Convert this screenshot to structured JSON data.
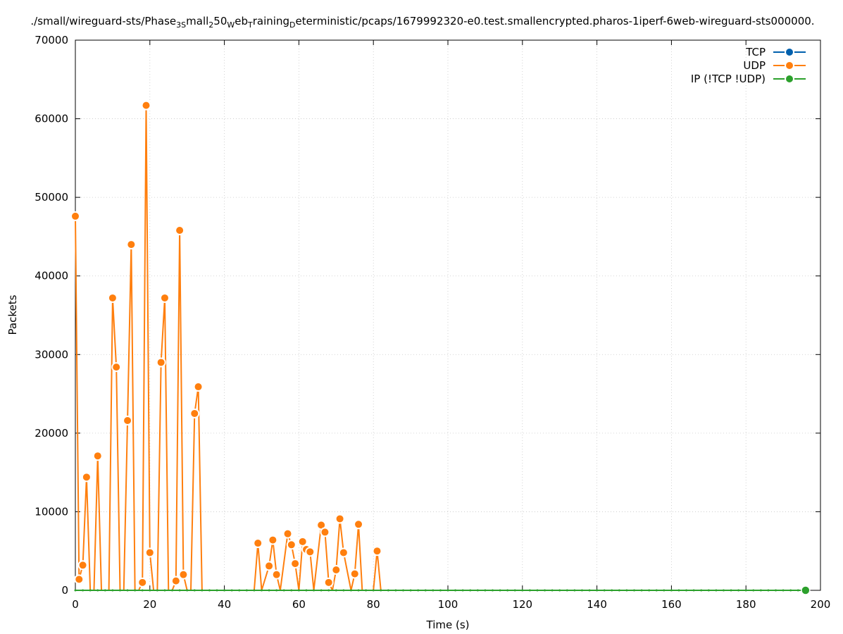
{
  "chart_data": {
    "type": "line",
    "title_parts": [
      {
        "t": "./small/wireguard-sts/Phase",
        "sub": false
      },
      {
        "t": "3S",
        "sub": true
      },
      {
        "t": "mall",
        "sub": false
      },
      {
        "t": "2",
        "sub": true
      },
      {
        "t": "50",
        "sub": false
      },
      {
        "t": "W",
        "sub": true
      },
      {
        "t": "eb",
        "sub": false
      },
      {
        "t": "T",
        "sub": true
      },
      {
        "t": "raining",
        "sub": false
      },
      {
        "t": "D",
        "sub": true
      },
      {
        "t": "eterministic/pcaps/1679992320-e0.test.smallencrypted.pharos-1iperf-6web-wireguard-sts000000.",
        "sub": false
      }
    ],
    "xlabel": "Time (s)",
    "ylabel": "Packets",
    "xlim": [
      0,
      200
    ],
    "ylim": [
      0,
      70000
    ],
    "x_ticks": [
      0,
      20,
      40,
      60,
      80,
      100,
      120,
      140,
      160,
      180,
      200
    ],
    "y_ticks": [
      0,
      10000,
      20000,
      30000,
      40000,
      50000,
      60000,
      70000
    ],
    "grid": true,
    "legend_position": "top-right",
    "series": [
      {
        "name": "TCP",
        "color": "#0060ad",
        "x": [],
        "y": []
      },
      {
        "name": "UDP",
        "color": "#ff7f0e",
        "x": [
          0,
          1,
          2,
          3,
          4,
          5,
          6,
          7,
          8,
          9,
          10,
          11,
          12,
          13,
          14,
          15,
          16,
          17,
          18,
          19,
          20,
          21,
          22,
          23,
          24,
          25,
          26,
          27,
          28,
          29,
          30,
          31,
          32,
          33,
          34,
          35,
          48,
          49,
          50,
          52,
          53,
          54,
          55,
          57,
          58,
          59,
          60,
          61,
          62,
          63,
          64,
          66,
          67,
          68,
          69,
          70,
          71,
          72,
          74,
          75,
          76,
          77,
          80,
          81,
          82
        ],
        "y": [
          47600,
          1400,
          3200,
          14400,
          0,
          0,
          17100,
          0,
          0,
          0,
          37200,
          28400,
          0,
          0,
          21600,
          44000,
          0,
          0,
          1000,
          61700,
          4800,
          0,
          0,
          29000,
          37200,
          0,
          0,
          1200,
          45800,
          2000,
          0,
          0,
          22500,
          25900,
          0,
          0,
          0,
          6000,
          0,
          3100,
          6400,
          2000,
          0,
          7200,
          5800,
          3400,
          0,
          6200,
          5200,
          4900,
          0,
          8300,
          7400,
          1000,
          0,
          2600,
          9100,
          4800,
          0,
          2100,
          8400,
          0,
          0,
          5000,
          0
        ]
      },
      {
        "name": "IP (!TCP  !UDP)",
        "color": "#2ca02c",
        "x": [
          0,
          2,
          4,
          6,
          8,
          10,
          12,
          14,
          16,
          18,
          20,
          22,
          24,
          26,
          28,
          30,
          32,
          34,
          36,
          38,
          40,
          42,
          44,
          46,
          48,
          50,
          52,
          54,
          56,
          58,
          60,
          62,
          64,
          66,
          68,
          70,
          72,
          74,
          76,
          78,
          80,
          82,
          84,
          86,
          88,
          90,
          92,
          94,
          96,
          98,
          100,
          102,
          104,
          106,
          108,
          110,
          112,
          114,
          116,
          118,
          120,
          122,
          124,
          126,
          128,
          130,
          132,
          134,
          136,
          138,
          140,
          142,
          144,
          146,
          148,
          150,
          152,
          154,
          156,
          158,
          160,
          162,
          164,
          166,
          168,
          170,
          172,
          174,
          176,
          178,
          180,
          182,
          184,
          186,
          188,
          190,
          192,
          194,
          196
        ],
        "y": [
          0,
          0,
          0,
          0,
          0,
          0,
          0,
          0,
          0,
          0,
          0,
          0,
          0,
          0,
          0,
          0,
          0,
          0,
          0,
          0,
          0,
          0,
          0,
          0,
          0,
          0,
          0,
          0,
          0,
          0,
          0,
          0,
          0,
          0,
          0,
          0,
          0,
          0,
          0,
          0,
          0,
          0,
          0,
          0,
          0,
          0,
          0,
          0,
          0,
          0,
          0,
          0,
          0,
          0,
          0,
          0,
          0,
          0,
          0,
          0,
          0,
          0,
          0,
          0,
          0,
          0,
          0,
          0,
          0,
          0,
          0,
          0,
          0,
          0,
          0,
          0,
          0,
          0,
          0,
          0,
          0,
          0,
          0,
          0,
          0,
          0,
          0,
          0,
          0,
          0,
          0,
          0,
          0,
          0,
          0,
          0,
          0,
          0,
          0
        ]
      }
    ]
  }
}
